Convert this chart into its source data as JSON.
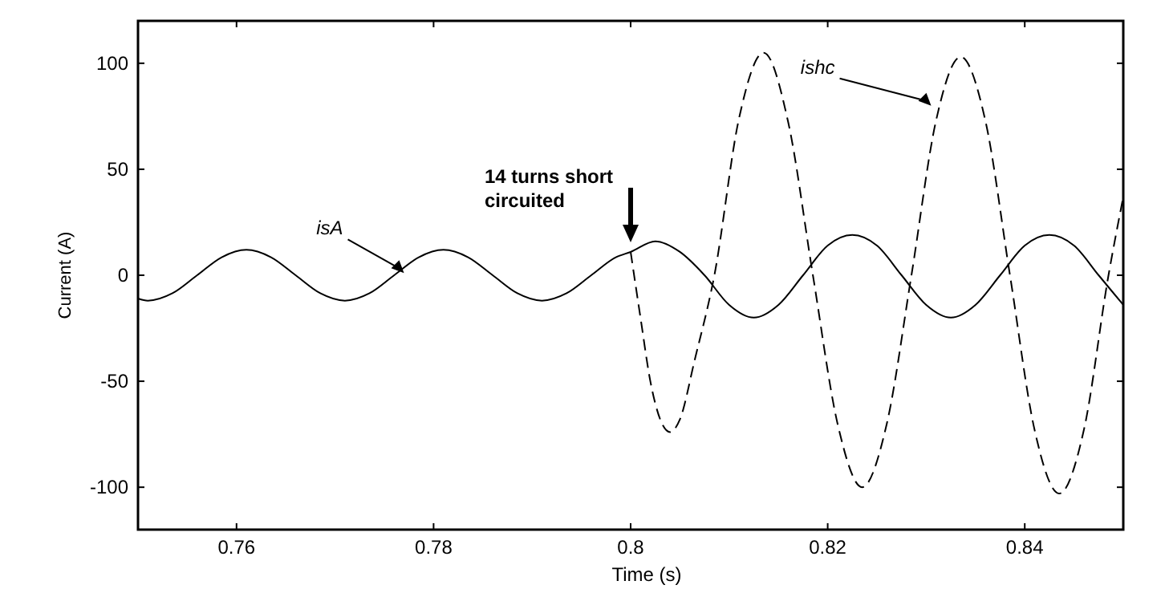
{
  "chart_data": {
    "type": "line",
    "xlabel": "Time (s)",
    "ylabel": "Current (A)",
    "xlim": [
      0.75,
      0.85
    ],
    "ylim": [
      -120,
      120
    ],
    "xticks": [
      0.76,
      0.78,
      0.8,
      0.82,
      0.84
    ],
    "yticks": [
      -100,
      -50,
      0,
      50,
      100
    ],
    "grid": false,
    "series": [
      {
        "name": "isA",
        "color": "#000000",
        "line_style": "solid",
        "x": [
          0.75,
          0.751,
          0.7535,
          0.756,
          0.7585,
          0.761,
          0.7635,
          0.766,
          0.7685,
          0.771,
          0.7735,
          0.776,
          0.7785,
          0.781,
          0.7835,
          0.786,
          0.7885,
          0.791,
          0.7935,
          0.796,
          0.7985,
          0.8,
          0.8025,
          0.805,
          0.8075,
          0.81,
          0.8125,
          0.815,
          0.8175,
          0.82,
          0.8225,
          0.825,
          0.8275,
          0.83,
          0.8325,
          0.835,
          0.8375,
          0.84,
          0.8425,
          0.845,
          0.8475,
          0.85
        ],
        "values": [
          -11,
          -12,
          -8.5,
          0,
          8.5,
          12,
          8.5,
          0,
          -8.5,
          -12,
          -8.5,
          0,
          8.5,
          12,
          8.5,
          0,
          -8.5,
          -12,
          -8.5,
          0,
          8.5,
          11,
          16,
          11,
          0,
          -14,
          -20,
          -14,
          0,
          14,
          19,
          14,
          0,
          -14,
          -20,
          -14,
          0,
          14,
          19,
          14,
          0,
          -14
        ]
      },
      {
        "name": "ishc",
        "color": "#000000",
        "line_style": "dashed",
        "x": [
          0.8,
          0.801,
          0.802,
          0.803,
          0.804,
          0.805,
          0.8065,
          0.8085,
          0.811,
          0.8135,
          0.816,
          0.8185,
          0.821,
          0.8235,
          0.826,
          0.8285,
          0.831,
          0.8335,
          0.836,
          0.8385,
          0.841,
          0.8435,
          0.846,
          0.8485,
          0.85
        ],
        "values": [
          11,
          -20,
          -50,
          -68,
          -74,
          -68,
          -40,
          0,
          74,
          105,
          72,
          0,
          -70,
          -100,
          -70,
          0,
          73,
          103,
          73,
          0,
          -73,
          -103,
          -73,
          0,
          37
        ]
      }
    ],
    "annotations": [
      "14 turns short circuited"
    ]
  }
}
